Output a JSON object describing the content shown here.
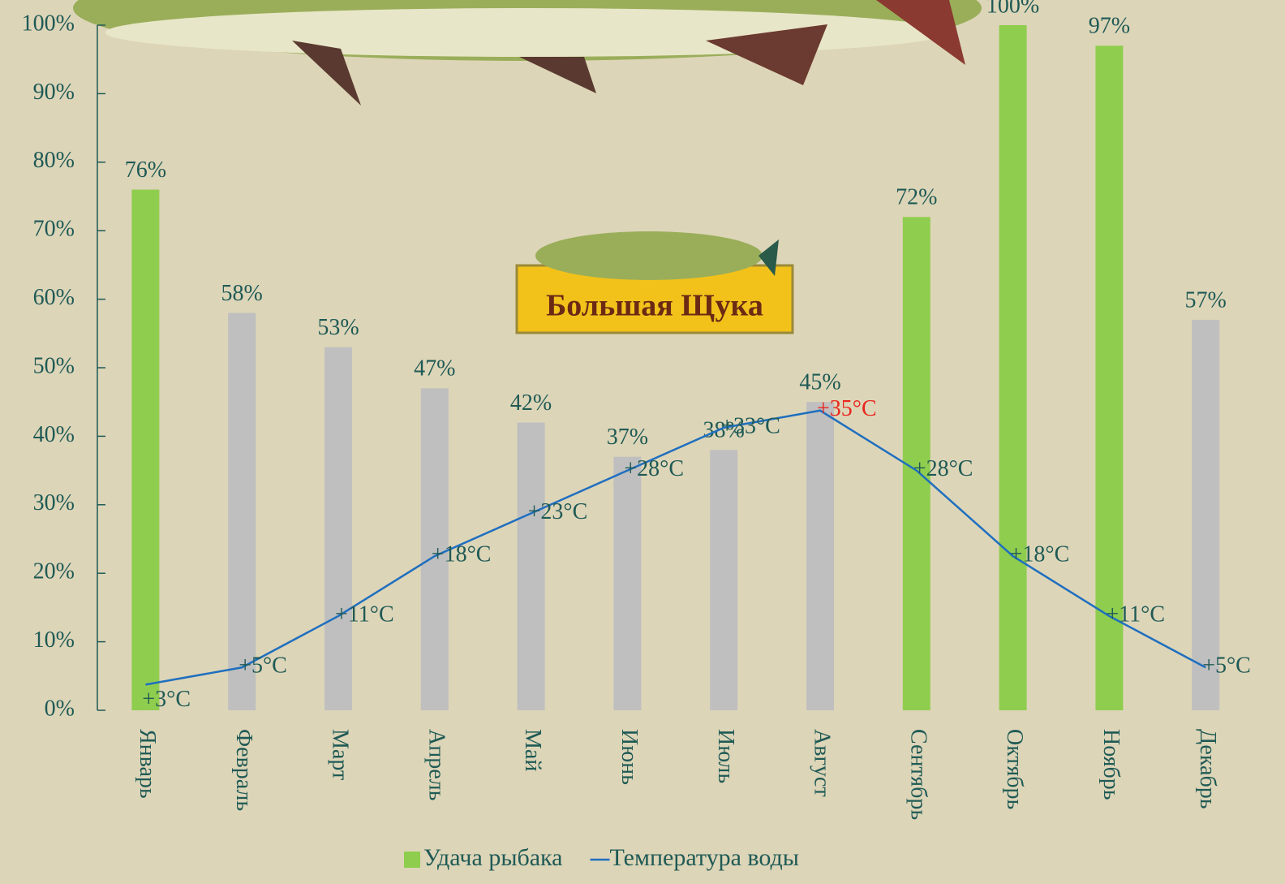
{
  "logo": "Большая Щука",
  "chart_data": {
    "type": "bar",
    "categories": [
      "Январь",
      "Февраль",
      "Март",
      "Апрель",
      "Май",
      "Июнь",
      "Июль",
      "Август",
      "Сентябрь",
      "Октябрь",
      "Ноябрь",
      "Декабрь"
    ],
    "series": [
      {
        "name": "Удача рыбака",
        "type": "bar",
        "color": "#8fcd4e",
        "colors": [
          "#8fcd4e",
          "#bfbfbf",
          "#bfbfbf",
          "#bfbfbf",
          "#bfbfbf",
          "#bfbfbf",
          "#bfbfbf",
          "#bfbfbf",
          "#8fcd4e",
          "#8fcd4e",
          "#8fcd4e",
          "#bfbfbf"
        ],
        "values": [
          76,
          58,
          53,
          47,
          42,
          37,
          38,
          45,
          72,
          100,
          97,
          57
        ],
        "value_labels": [
          "76%",
          "58%",
          "53%",
          "47%",
          "42%",
          "37%",
          "38%",
          "45%",
          "72%",
          "100%",
          "97%",
          "57%"
        ]
      },
      {
        "name": "Температура воды",
        "type": "line",
        "axis": "y2",
        "color": "#1f6fbf",
        "values": [
          3,
          5,
          11,
          18,
          23,
          28,
          33,
          35,
          28,
          18,
          11,
          5
        ],
        "value_labels": [
          "+3°C",
          "+5°C",
          "+11°C",
          "+18°C",
          "+23°C",
          "+28°C",
          "+33°C",
          "+35°C",
          "+28°C",
          "+18°C",
          "+11°C",
          "+5°C"
        ],
        "label_colors": [
          "#1f5a55",
          "#1f5a55",
          "#1f5a55",
          "#1f5a55",
          "#1f5a55",
          "#1f5a55",
          "#1f5a55",
          "#e8261e",
          "#1f5a55",
          "#1f5a55",
          "#1f5a55",
          "#1f5a55"
        ]
      }
    ],
    "ylim": [
      0,
      100
    ],
    "yticks": [
      {
        "value": 0,
        "label": "0%"
      },
      {
        "value": 10,
        "label": "10%"
      },
      {
        "value": 20,
        "label": "20%"
      },
      {
        "value": 30,
        "label": "30%"
      },
      {
        "value": 40,
        "label": "40%"
      },
      {
        "value": 50,
        "label": "50%"
      },
      {
        "value": 60,
        "label": "60%"
      },
      {
        "value": 70,
        "label": "70%"
      },
      {
        "value": 80,
        "label": "80%"
      },
      {
        "value": 90,
        "label": "90%"
      },
      {
        "value": 100,
        "label": "100%"
      }
    ],
    "y2lim": [
      0,
      80
    ],
    "legend": "bottom"
  }
}
